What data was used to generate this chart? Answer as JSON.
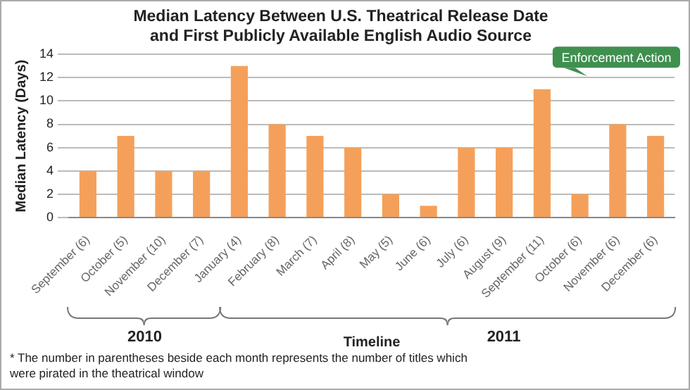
{
  "chart_data": {
    "type": "bar",
    "title": "Median Latency Between U.S. Theatrical Release Date and First Publicly Available English Audio Source",
    "xlabel": "Timeline",
    "ylabel": "Median Latency (Days)",
    "categories": [
      "September (6)",
      "October (5)",
      "November (10)",
      "December (7)",
      "January (4)",
      "February (8)",
      "March (7)",
      "April (8)",
      "May (5)",
      "June (6)",
      "July (6)",
      "August (9)",
      "September (11)",
      "October (6)",
      "November (6)",
      "December (6)"
    ],
    "values": [
      4,
      7,
      4,
      4,
      13,
      8,
      7,
      6,
      2,
      1,
      6,
      6,
      11,
      2,
      8,
      7
    ],
    "color": "#f5a05a",
    "ylim": [
      0,
      14
    ],
    "yticks": [
      0,
      2,
      4,
      6,
      8,
      10,
      12,
      14
    ],
    "grid": "y",
    "annotations": [
      "2010",
      "2011",
      "Enforcement Action",
      "* The number in parentheses beside each month represents the number of titles which were pirated in the theatrical window"
    ]
  }
}
